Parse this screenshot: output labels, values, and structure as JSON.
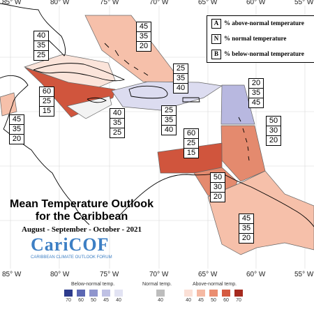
{
  "longitudes": [
    "85° W",
    "80° W",
    "75° W",
    "70° W",
    "65° W",
    "60° W",
    "55° W"
  ],
  "key": [
    {
      "letter": "A",
      "text": "% above-normal temperature"
    },
    {
      "letter": "N",
      "text": "% normal temperature"
    },
    {
      "letter": "B",
      "text": "% below-normal temperature"
    }
  ],
  "forecast_boxes": [
    {
      "region": "bahamas",
      "values": [
        "45",
        "35",
        "20"
      ],
      "color": "#f6c0aa"
    },
    {
      "region": "cuba",
      "values": [
        "40",
        "35",
        "25"
      ],
      "color": "#fbe4da"
    },
    {
      "region": "west-cuba-jamaica",
      "values": [
        "60",
        "25",
        "15"
      ],
      "color": "#d0553d"
    },
    {
      "region": "belize-yucatan",
      "values": [
        "45",
        "35",
        "20"
      ],
      "color": "#f6c0aa"
    },
    {
      "region": "cayman-west",
      "values": [
        "40",
        "35",
        "25"
      ],
      "color": "#f3f3f3"
    },
    {
      "region": "hispaniola",
      "values": [
        "25",
        "35",
        "40"
      ],
      "color": "#dcdcf0"
    },
    {
      "region": "puerto-rico",
      "values": [
        "25",
        "35",
        "40"
      ],
      "color": "#dcdcf0"
    },
    {
      "region": "northern-leewards",
      "values": [
        "20",
        "35",
        "45"
      ],
      "color": "#b8b8e0"
    },
    {
      "region": "abc-islands",
      "values": [
        "60",
        "25",
        "15"
      ],
      "color": "#d0553d"
    },
    {
      "region": "windwards",
      "values": [
        "50",
        "30",
        "20"
      ],
      "color": "#e48a6e"
    },
    {
      "region": "venezuela-coast",
      "values": [
        "50",
        "30",
        "20"
      ],
      "color": "#e48a6e"
    },
    {
      "region": "guianas",
      "values": [
        "45",
        "35",
        "20"
      ],
      "color": "#f6c0aa"
    }
  ],
  "title": {
    "line1": "Mean Temperature Outlook",
    "line2": "for the Caribbean",
    "period": "August - September - October - 2021"
  },
  "logo": {
    "name": "CariCOF",
    "subtitle": "CARIBBEAN CLIMATE OUTLOOK FORUM"
  },
  "legend": {
    "below": {
      "label": "Below-normal temp.",
      "ticks": [
        "70",
        "60",
        "50",
        "45",
        "40"
      ],
      "colors": [
        "#2d3b8c",
        "#5b67b3",
        "#8f95cd",
        "#bfc1e4",
        "#e2e3f3"
      ]
    },
    "normal": {
      "label": "Normal temp.",
      "ticks": [
        "40"
      ],
      "colors": [
        "#bdbdbd"
      ]
    },
    "above": {
      "label": "Above-normal temp.",
      "ticks": [
        "40",
        "45",
        "50",
        "60",
        "70"
      ],
      "colors": [
        "#fbe0d6",
        "#f5b9a3",
        "#ea8d70",
        "#d45a40",
        "#a52a1e"
      ]
    }
  }
}
